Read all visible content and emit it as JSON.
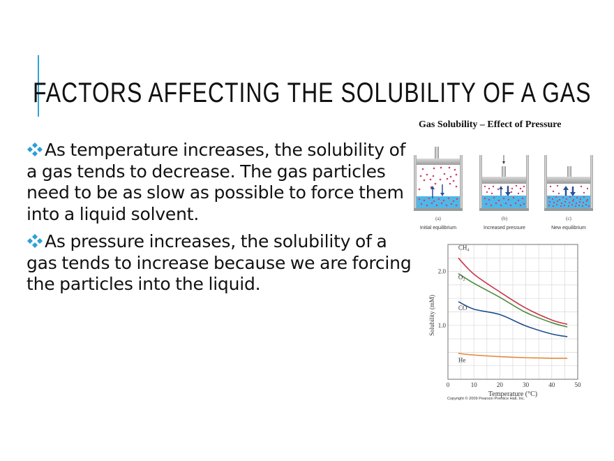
{
  "slide": {
    "title": "FACTORS AFFECTING THE SOLUBILITY OF A GAS",
    "accent_color": "#2FA5D4",
    "bullet_icon": "four-diamond-bullet-icon",
    "bullets": [
      {
        "text": "As temperature increases, the solubility of a gas tends to decrease. The gas particles need to be as slow as possible to force them into a liquid solvent."
      },
      {
        "text": "As pressure increases, the solubility of a gas tends to increase because we are forcing the particles into the liquid."
      }
    ]
  },
  "figure": {
    "caption": "Gas Solubility – Effect of Pressure",
    "panels": [
      {
        "letter": "(a)",
        "label": "Initial equilibrium"
      },
      {
        "letter": "(b)",
        "label": "Increased pressure"
      },
      {
        "letter": "(c)",
        "label": "New equilibrium"
      }
    ],
    "copyright": "Copyright © 2009 Pearson Prentice Hall, Inc."
  },
  "chart_data": {
    "type": "line",
    "title": "",
    "xlabel": "Temperature (°C)",
    "ylabel": "Solubility (mM)",
    "xlim": [
      0,
      50
    ],
    "ylim": [
      0,
      2.5
    ],
    "x_ticks": [
      "0",
      "10",
      "20",
      "30",
      "40",
      "50"
    ],
    "y_ticks": [
      "1.0",
      "2.0"
    ],
    "grid": true,
    "x": [
      4,
      10,
      20,
      30,
      40,
      46
    ],
    "series": [
      {
        "name": "CH4",
        "label": "CH₄",
        "color": "#C8364A",
        "values": [
          2.25,
          1.95,
          1.62,
          1.32,
          1.1,
          1.02
        ]
      },
      {
        "name": "O2",
        "label": "O₂",
        "color": "#4E8A3A",
        "values": [
          1.96,
          1.78,
          1.52,
          1.24,
          1.05,
          0.97
        ]
      },
      {
        "name": "CO",
        "label": "CO",
        "color": "#1F4E8C",
        "values": [
          1.44,
          1.3,
          1.2,
          0.99,
          0.84,
          0.79
        ]
      },
      {
        "name": "He",
        "label": "He",
        "color": "#E08A3A",
        "values": [
          0.48,
          0.45,
          0.42,
          0.4,
          0.39,
          0.39
        ]
      }
    ]
  }
}
